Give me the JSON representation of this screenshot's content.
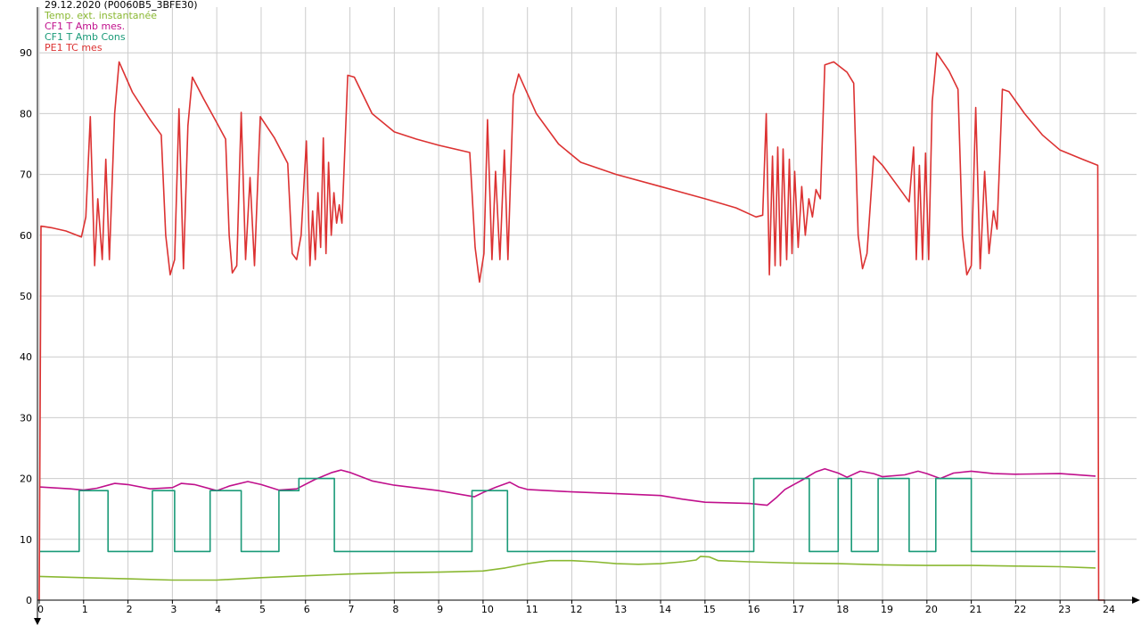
{
  "chart_data": {
    "type": "line",
    "title": "29.12.2020 (P0060B5_3BFE30)",
    "xlim": [
      0,
      24
    ],
    "ylim": [
      0,
      95
    ],
    "x_ticks": [
      "0",
      "1",
      "2",
      "3",
      "4",
      "5",
      "6",
      "7",
      "8",
      "9",
      "10",
      "11",
      "12",
      "13",
      "14",
      "15",
      "16",
      "17",
      "18",
      "19",
      "20",
      "21",
      "22",
      "23",
      "24"
    ],
    "y_ticks": [
      "0",
      "10",
      "20",
      "30",
      "40",
      "50",
      "60",
      "70",
      "80",
      "90"
    ],
    "grid": true,
    "legend_position": "top-left",
    "series": [
      {
        "name": "Temp. ext. instantanée",
        "color": "#8ab832",
        "points": [
          [
            0,
            3.9
          ],
          [
            1,
            3.7
          ],
          [
            2,
            3.5
          ],
          [
            3,
            3.3
          ],
          [
            4,
            3.3
          ],
          [
            5,
            3.7
          ],
          [
            6,
            4.0
          ],
          [
            7,
            4.3
          ],
          [
            8,
            4.5
          ],
          [
            9,
            4.6
          ],
          [
            10,
            4.8
          ],
          [
            10.5,
            5.3
          ],
          [
            11,
            6.0
          ],
          [
            11.5,
            6.5
          ],
          [
            12,
            6.5
          ],
          [
            12.5,
            6.3
          ],
          [
            13,
            6.0
          ],
          [
            13.5,
            5.9
          ],
          [
            14,
            6.0
          ],
          [
            14.5,
            6.3
          ],
          [
            14.8,
            6.6
          ],
          [
            14.9,
            7.2
          ],
          [
            15.1,
            7.1
          ],
          [
            15.3,
            6.5
          ],
          [
            16,
            6.3
          ],
          [
            17,
            6.1
          ],
          [
            18,
            6.0
          ],
          [
            19,
            5.8
          ],
          [
            20,
            5.7
          ],
          [
            21,
            5.7
          ],
          [
            22,
            5.6
          ],
          [
            23,
            5.5
          ],
          [
            23.8,
            5.3
          ]
        ]
      },
      {
        "name": "CF1 T Amb mes.",
        "color": "#c0108c",
        "points": [
          [
            0,
            18.6
          ],
          [
            0.7,
            18.3
          ],
          [
            1,
            18.1
          ],
          [
            1.3,
            18.4
          ],
          [
            1.7,
            19.2
          ],
          [
            2,
            19.0
          ],
          [
            2.5,
            18.3
          ],
          [
            3,
            18.5
          ],
          [
            3.2,
            19.2
          ],
          [
            3.5,
            19.0
          ],
          [
            4,
            18.0
          ],
          [
            4.3,
            18.8
          ],
          [
            4.7,
            19.5
          ],
          [
            5,
            19.0
          ],
          [
            5.4,
            18.1
          ],
          [
            5.8,
            18.3
          ],
          [
            6.2,
            19.8
          ],
          [
            6.6,
            21.0
          ],
          [
            6.8,
            21.4
          ],
          [
            7,
            21.0
          ],
          [
            7.5,
            19.6
          ],
          [
            8,
            18.9
          ],
          [
            9,
            18.0
          ],
          [
            9.8,
            17.0
          ],
          [
            10,
            17.7
          ],
          [
            10.3,
            18.6
          ],
          [
            10.6,
            19.4
          ],
          [
            10.8,
            18.6
          ],
          [
            11,
            18.2
          ],
          [
            12,
            17.8
          ],
          [
            13,
            17.5
          ],
          [
            14,
            17.2
          ],
          [
            14.5,
            16.6
          ],
          [
            15,
            16.1
          ],
          [
            16,
            15.9
          ],
          [
            16.4,
            15.6
          ],
          [
            16.6,
            16.8
          ],
          [
            16.8,
            18.2
          ],
          [
            17.2,
            19.8
          ],
          [
            17.5,
            21.1
          ],
          [
            17.7,
            21.6
          ],
          [
            18,
            20.9
          ],
          [
            18.2,
            20.2
          ],
          [
            18.5,
            21.2
          ],
          [
            18.8,
            20.8
          ],
          [
            19,
            20.3
          ],
          [
            19.5,
            20.6
          ],
          [
            19.8,
            21.2
          ],
          [
            20,
            20.8
          ],
          [
            20.3,
            20.0
          ],
          [
            20.6,
            20.9
          ],
          [
            21,
            21.2
          ],
          [
            21.5,
            20.8
          ],
          [
            22,
            20.7
          ],
          [
            23,
            20.8
          ],
          [
            23.8,
            20.4
          ]
        ]
      },
      {
        "name": "CF1 T Amb Cons",
        "color": "#1a9a78",
        "points": [
          [
            0,
            8
          ],
          [
            0.9,
            8
          ],
          [
            0.9,
            18
          ],
          [
            1.55,
            18
          ],
          [
            1.55,
            8
          ],
          [
            2.55,
            8
          ],
          [
            2.55,
            18
          ],
          [
            3.05,
            18
          ],
          [
            3.05,
            8
          ],
          [
            3.85,
            8
          ],
          [
            3.85,
            18
          ],
          [
            4.55,
            18
          ],
          [
            4.55,
            8
          ],
          [
            5.4,
            8
          ],
          [
            5.4,
            18
          ],
          [
            5.85,
            18
          ],
          [
            5.85,
            20
          ],
          [
            6.65,
            20
          ],
          [
            6.65,
            8
          ],
          [
            9.75,
            8
          ],
          [
            9.75,
            18
          ],
          [
            10.55,
            18
          ],
          [
            10.55,
            8
          ],
          [
            16.1,
            8
          ],
          [
            16.1,
            20
          ],
          [
            17.35,
            20
          ],
          [
            17.35,
            8
          ],
          [
            18.0,
            8
          ],
          [
            18.0,
            20
          ],
          [
            18.3,
            20
          ],
          [
            18.3,
            8
          ],
          [
            18.9,
            8
          ],
          [
            18.9,
            20
          ],
          [
            19.6,
            20
          ],
          [
            19.6,
            8
          ],
          [
            20.2,
            8
          ],
          [
            20.2,
            20
          ],
          [
            21.0,
            20
          ],
          [
            21.0,
            8
          ],
          [
            23.8,
            8
          ]
        ]
      },
      {
        "name": "PE1 TC mes",
        "color": "#dc3232",
        "points": [
          [
            0,
            0
          ],
          [
            0.04,
            61.5
          ],
          [
            0.3,
            61.2
          ],
          [
            0.6,
            60.7
          ],
          [
            0.95,
            59.7
          ],
          [
            1.05,
            63
          ],
          [
            1.15,
            79.5
          ],
          [
            1.25,
            55
          ],
          [
            1.32,
            66
          ],
          [
            1.42,
            56
          ],
          [
            1.5,
            72.5
          ],
          [
            1.58,
            56
          ],
          [
            1.7,
            80
          ],
          [
            1.8,
            88.5
          ],
          [
            2.1,
            83.5
          ],
          [
            2.5,
            79
          ],
          [
            2.75,
            76.5
          ],
          [
            2.85,
            60
          ],
          [
            2.95,
            53.5
          ],
          [
            3.05,
            56
          ],
          [
            3.15,
            80.8
          ],
          [
            3.25,
            54.5
          ],
          [
            3.35,
            78
          ],
          [
            3.45,
            86
          ],
          [
            3.7,
            82.5
          ],
          [
            4.0,
            78.5
          ],
          [
            4.2,
            75.8
          ],
          [
            4.28,
            60
          ],
          [
            4.35,
            53.8
          ],
          [
            4.45,
            55
          ],
          [
            4.55,
            80.2
          ],
          [
            4.65,
            56
          ],
          [
            4.75,
            69.5
          ],
          [
            4.85,
            55
          ],
          [
            4.98,
            79.5
          ],
          [
            5.3,
            76
          ],
          [
            5.6,
            71.8
          ],
          [
            5.7,
            57
          ],
          [
            5.8,
            56
          ],
          [
            5.9,
            60
          ],
          [
            6.02,
            75.5
          ],
          [
            6.1,
            55
          ],
          [
            6.16,
            64
          ],
          [
            6.22,
            56
          ],
          [
            6.28,
            67
          ],
          [
            6.34,
            58
          ],
          [
            6.4,
            76
          ],
          [
            6.46,
            57
          ],
          [
            6.52,
            72
          ],
          [
            6.58,
            60
          ],
          [
            6.64,
            67
          ],
          [
            6.7,
            62
          ],
          [
            6.76,
            65
          ],
          [
            6.82,
            62
          ],
          [
            6.95,
            86.3
          ],
          [
            7.1,
            86
          ],
          [
            7.5,
            80
          ],
          [
            8,
            77
          ],
          [
            8.5,
            75.8
          ],
          [
            9,
            74.8
          ],
          [
            9.7,
            73.6
          ],
          [
            9.82,
            58
          ],
          [
            9.92,
            52.3
          ],
          [
            10.02,
            57
          ],
          [
            10.1,
            79
          ],
          [
            10.2,
            56
          ],
          [
            10.28,
            70.5
          ],
          [
            10.38,
            56
          ],
          [
            10.48,
            74
          ],
          [
            10.56,
            56
          ],
          [
            10.68,
            83
          ],
          [
            10.8,
            86.5
          ],
          [
            11.2,
            80
          ],
          [
            11.7,
            75
          ],
          [
            12.2,
            72
          ],
          [
            13,
            70
          ],
          [
            14,
            68
          ],
          [
            15,
            66
          ],
          [
            15.7,
            64.5
          ],
          [
            16.15,
            63
          ],
          [
            16.3,
            63.3
          ],
          [
            16.38,
            80
          ],
          [
            16.45,
            53.5
          ],
          [
            16.52,
            73
          ],
          [
            16.58,
            55
          ],
          [
            16.64,
            74.5
          ],
          [
            16.7,
            55
          ],
          [
            16.76,
            74.2
          ],
          [
            16.84,
            56
          ],
          [
            16.9,
            72.5
          ],
          [
            16.96,
            57
          ],
          [
            17.02,
            70.5
          ],
          [
            17.1,
            58
          ],
          [
            17.18,
            68
          ],
          [
            17.26,
            60
          ],
          [
            17.34,
            66
          ],
          [
            17.42,
            63
          ],
          [
            17.5,
            67.5
          ],
          [
            17.6,
            66
          ],
          [
            17.7,
            88
          ],
          [
            17.9,
            88.5
          ],
          [
            18.2,
            86.8
          ],
          [
            18.35,
            85
          ],
          [
            18.45,
            60
          ],
          [
            18.55,
            54.5
          ],
          [
            18.65,
            57
          ],
          [
            18.8,
            73
          ],
          [
            19.0,
            71.5
          ],
          [
            19.3,
            68.5
          ],
          [
            19.6,
            65.5
          ],
          [
            19.7,
            74.5
          ],
          [
            19.76,
            56
          ],
          [
            19.83,
            71.5
          ],
          [
            19.9,
            56
          ],
          [
            19.97,
            73.5
          ],
          [
            20.04,
            56
          ],
          [
            20.12,
            82
          ],
          [
            20.22,
            90
          ],
          [
            20.5,
            87
          ],
          [
            20.7,
            84
          ],
          [
            20.8,
            60
          ],
          [
            20.9,
            53.5
          ],
          [
            21.0,
            55
          ],
          [
            21.1,
            81
          ],
          [
            21.2,
            54.5
          ],
          [
            21.3,
            70.5
          ],
          [
            21.4,
            57
          ],
          [
            21.5,
            64
          ],
          [
            21.58,
            61
          ],
          [
            21.7,
            84
          ],
          [
            21.85,
            83.6
          ],
          [
            22.2,
            80
          ],
          [
            22.6,
            76.5
          ],
          [
            23,
            74
          ],
          [
            23.5,
            72.5
          ],
          [
            23.85,
            71.5
          ],
          [
            23.87,
            0
          ],
          [
            24,
            0
          ]
        ]
      }
    ]
  }
}
